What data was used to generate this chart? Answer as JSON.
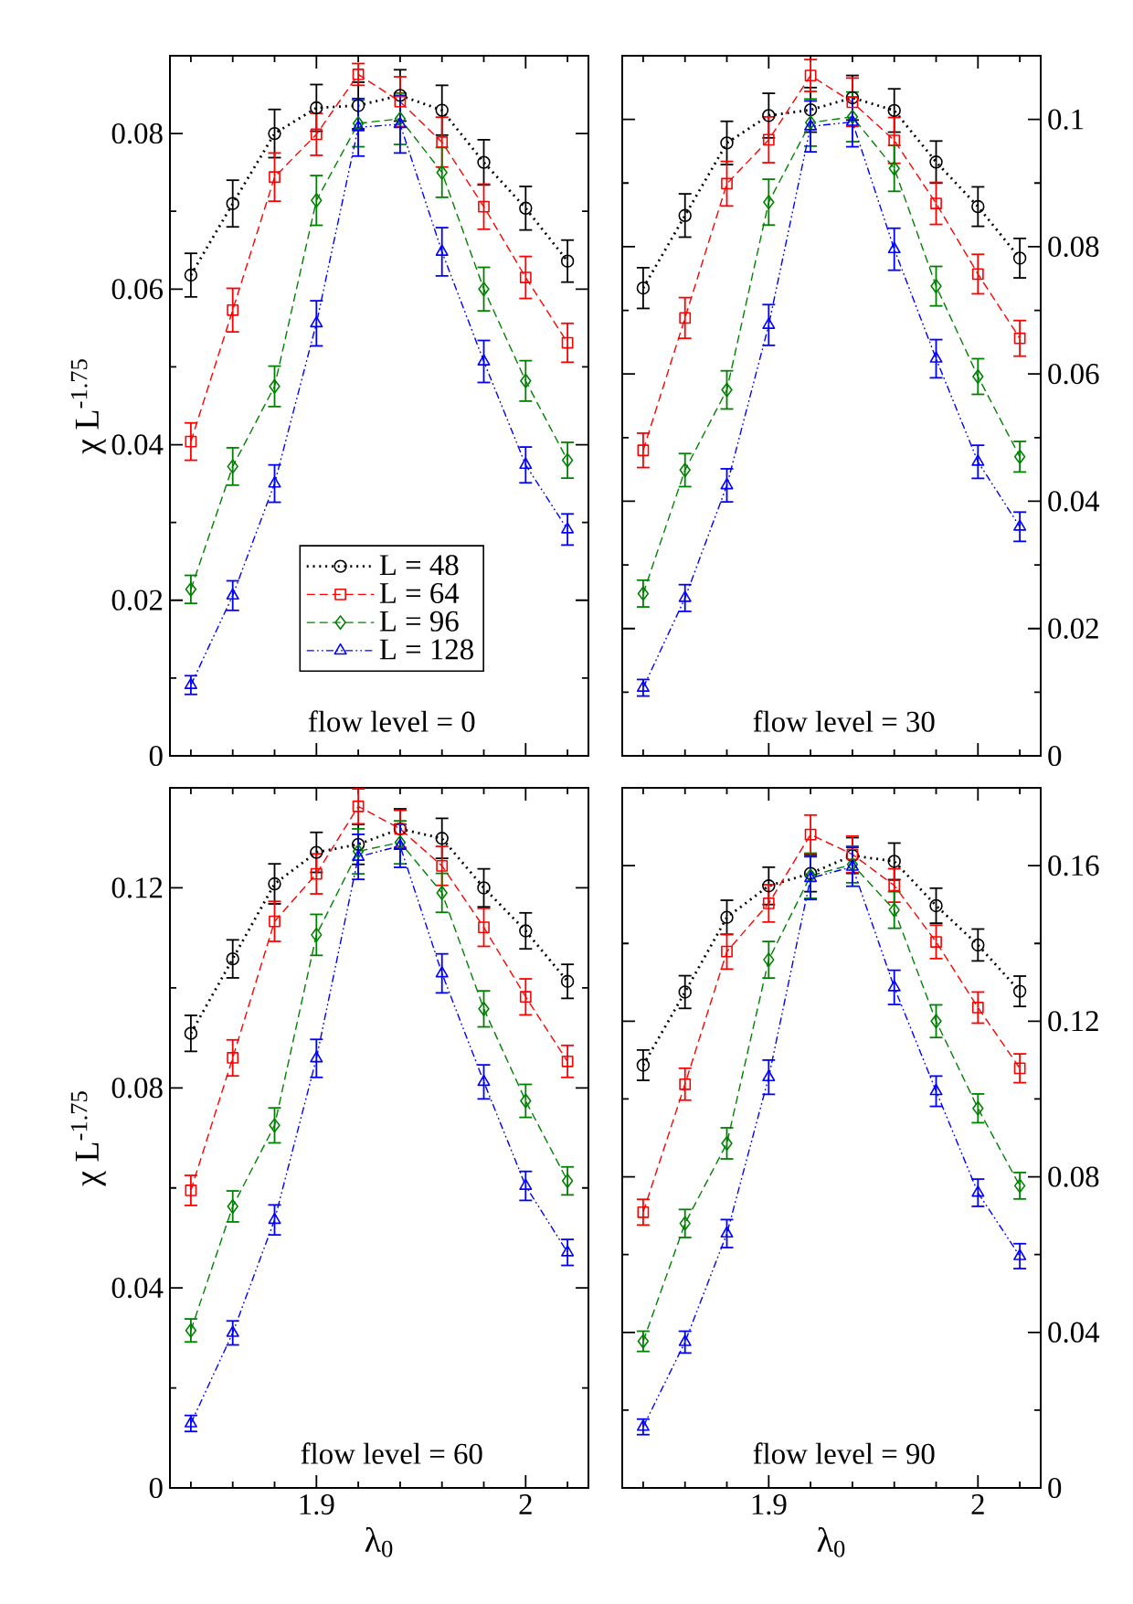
{
  "chart_data": [
    {
      "type": "line",
      "ylabel": "χ L$^{-1.75}$",
      "annotations": [
        "flow level = 0"
      ],
      "legend": "bottom",
      "tick_labels": "y",
      "x": [
        1.84,
        1.86,
        1.88,
        1.9,
        1.92,
        1.94,
        1.96,
        1.98,
        2.0,
        2.02
      ],
      "xlim": [
        1.83,
        2.03
      ],
      "ylim": [
        0,
        0.09
      ],
      "xticks": [
        {
          "value": 1.84,
          "label": null
        },
        {
          "value": 1.86,
          "label": null
        },
        {
          "value": 1.88,
          "label": null
        },
        1.9,
        {
          "value": 1.92,
          "label": null
        },
        {
          "value": 1.94,
          "label": null
        },
        {
          "value": 1.96,
          "label": null
        },
        {
          "value": 1.98,
          "label": null
        },
        2,
        {
          "value": 2.02,
          "label": null
        }
      ],
      "yticks": [
        0,
        {
          "value": 0.01,
          "label": null
        },
        0.02,
        {
          "value": 0.03,
          "label": null
        },
        0.04,
        {
          "value": 0.05,
          "label": null
        },
        0.06,
        {
          "value": 0.07,
          "label": null
        },
        0.08
      ],
      "series": [
        {
          "name": "L = 48",
          "color": "#000000",
          "marker": "circle",
          "line_style": "dotted",
          "values": [
            0.0618,
            0.071,
            0.08,
            0.0833,
            0.0836,
            0.0849,
            0.083,
            0.0763,
            0.0704,
            0.0636
          ],
          "errors": [
            0.0028,
            0.003,
            0.0031,
            0.003,
            0.003,
            0.0033,
            0.0032,
            0.0029,
            0.0028,
            0.0027
          ]
        },
        {
          "name": "L = 64",
          "color": "#ff0000",
          "marker": "square",
          "line_style": "dashed",
          "values": [
            0.0404,
            0.0573,
            0.0744,
            0.0799,
            0.0876,
            0.0841,
            0.0789,
            0.0706,
            0.0615,
            0.0531
          ],
          "errors": [
            0.0024,
            0.0028,
            0.0031,
            0.0027,
            0.0014,
            0.0032,
            0.0032,
            0.0029,
            0.0027,
            0.0025
          ]
        },
        {
          "name": "L = 96",
          "color": "#008000",
          "marker": "diamond",
          "line_style": "dashed",
          "values": [
            0.0214,
            0.0372,
            0.0475,
            0.0714,
            0.0813,
            0.0819,
            0.075,
            0.06,
            0.0482,
            0.038
          ],
          "errors": [
            0.0018,
            0.0024,
            0.0026,
            0.0032,
            0.003,
            0.0033,
            0.0032,
            0.0028,
            0.0026,
            0.0023
          ]
        },
        {
          "name": "L = 128",
          "color": "#0000ff",
          "marker": "triangle",
          "line_style": "dashdotdotted",
          "values": [
            0.0091,
            0.0206,
            0.035,
            0.0556,
            0.0808,
            0.0812,
            0.0648,
            0.0507,
            0.0374,
            0.0291
          ],
          "errors": [
            0.0012,
            0.0019,
            0.0024,
            0.0029,
            0.0037,
            0.0037,
            0.0031,
            0.0027,
            0.0023,
            0.002
          ]
        }
      ]
    },
    {
      "type": "line",
      "annotations": [
        "flow level = 30"
      ],
      "tick_labels": "y",
      "x": [
        1.84,
        1.86,
        1.88,
        1.9,
        1.92,
        1.94,
        1.96,
        1.98,
        2.0,
        2.02
      ],
      "xlim": [
        1.83,
        2.03
      ],
      "y2lim": [
        0,
        0.11
      ],
      "xticks": [
        {
          "value": 1.84,
          "label": null
        },
        {
          "value": 1.86,
          "label": null
        },
        {
          "value": 1.88,
          "label": null
        },
        1.9,
        {
          "value": 1.92,
          "label": null
        },
        {
          "value": 1.94,
          "label": null
        },
        {
          "value": 1.96,
          "label": null
        },
        {
          "value": 1.98,
          "label": null
        },
        2,
        {
          "value": 2.02,
          "label": null
        }
      ],
      "y2ticks": [
        0,
        {
          "value": 0.01,
          "label": null
        },
        0.02,
        {
          "value": 0.03,
          "label": null
        },
        0.04,
        {
          "value": 0.05,
          "label": null
        },
        0.06,
        {
          "value": 0.07,
          "label": null
        },
        0.08,
        {
          "value": 0.09,
          "label": null
        },
        0.1
      ],
      "series": [
        {
          "axis": "y2",
          "color": "#000000",
          "marker": "circle",
          "line_style": "dotted",
          "values": [
            0.0735,
            0.0849,
            0.0963,
            0.1006,
            0.1015,
            0.1034,
            0.1014,
            0.0933,
            0.0863,
            0.0782
          ],
          "errors": [
            0.0032,
            0.0034,
            0.0034,
            0.0035,
            0.0035,
            0.0035,
            0.0034,
            0.0033,
            0.0031,
            0.0031
          ]
        },
        {
          "axis": "y2",
          "color": "#ff0000",
          "marker": "square",
          "line_style": "dashed",
          "values": [
            0.048,
            0.0688,
            0.0899,
            0.0968,
            0.1069,
            0.1027,
            0.0967,
            0.0868,
            0.0757,
            0.0656
          ],
          "errors": [
            0.0027,
            0.0032,
            0.0035,
            0.0036,
            0.0025,
            0.0038,
            0.0036,
            0.0033,
            0.0031,
            0.0028
          ]
        },
        {
          "axis": "y2",
          "color": "#008000",
          "marker": "diamond",
          "line_style": "dashed",
          "values": [
            0.0255,
            0.0449,
            0.0575,
            0.087,
            0.0995,
            0.1004,
            0.0923,
            0.0738,
            0.0596,
            0.047
          ],
          "errors": [
            0.0021,
            0.0026,
            0.003,
            0.0036,
            0.0037,
            0.0039,
            0.0036,
            0.0031,
            0.0028,
            0.0024
          ]
        },
        {
          "axis": "y2",
          "color": "#0000ff",
          "marker": "triangle",
          "line_style": "dashdotdotted",
          "values": [
            0.0107,
            0.0248,
            0.0425,
            0.0677,
            0.0989,
            0.0996,
            0.0796,
            0.0624,
            0.0462,
            0.036
          ],
          "errors": [
            0.0013,
            0.0021,
            0.0026,
            0.0032,
            0.004,
            0.0039,
            0.0033,
            0.003,
            0.0026,
            0.0023
          ]
        }
      ]
    },
    {
      "type": "line",
      "xlabel": "λ$_{0}$",
      "ylabel": "χ L$^{-1.75}$",
      "annotations": [
        "flow level = 60"
      ],
      "x": [
        1.84,
        1.86,
        1.88,
        1.9,
        1.92,
        1.94,
        1.96,
        1.98,
        2.0,
        2.02
      ],
      "xlim": [
        1.83,
        2.03
      ],
      "ylim": [
        0,
        0.14
      ],
      "xticks": [
        {
          "value": 1.84,
          "label": null
        },
        {
          "value": 1.86,
          "label": null
        },
        {
          "value": 1.88,
          "label": null
        },
        1.9,
        {
          "value": 1.92,
          "label": null
        },
        {
          "value": 1.94,
          "label": null
        },
        {
          "value": 1.96,
          "label": null
        },
        {
          "value": 1.98,
          "label": null
        },
        2,
        {
          "value": 2.02,
          "label": null
        }
      ],
      "yticks": [
        0,
        {
          "value": 0.02,
          "label": null
        },
        0.04,
        {
          "value": 0.06,
          "label": null
        },
        0.08,
        {
          "value": 0.1,
          "label": null
        },
        0.12
      ],
      "series": [
        {
          "color": "#000000",
          "marker": "circle",
          "line_style": "dotted",
          "values": [
            0.0909,
            0.1058,
            0.1208,
            0.1271,
            0.1287,
            0.1318,
            0.1299,
            0.12,
            0.1114,
            0.1013
          ],
          "errors": [
            0.0036,
            0.0038,
            0.004,
            0.004,
            0.004,
            0.004,
            0.004,
            0.0038,
            0.0036,
            0.0034
          ]
        },
        {
          "color": "#ff0000",
          "marker": "square",
          "line_style": "dashed",
          "values": [
            0.0595,
            0.086,
            0.1133,
            0.1228,
            0.1363,
            0.1318,
            0.1244,
            0.1121,
            0.0982,
            0.0853
          ],
          "errors": [
            0.003,
            0.0036,
            0.004,
            0.004,
            0.0035,
            0.0037,
            0.0039,
            0.0038,
            0.0036,
            0.0032
          ]
        },
        {
          "color": "#008000",
          "marker": "diamond",
          "line_style": "dashed",
          "values": [
            0.0315,
            0.0563,
            0.0725,
            0.1106,
            0.1273,
            0.1291,
            0.119,
            0.0958,
            0.0774,
            0.0614
          ],
          "errors": [
            0.0023,
            0.0031,
            0.0035,
            0.0041,
            0.0045,
            0.0043,
            0.0039,
            0.0036,
            0.0033,
            0.0028
          ]
        },
        {
          "color": "#0000ff",
          "marker": "triangle",
          "line_style": "dashdotdotted",
          "values": [
            0.0129,
            0.031,
            0.0536,
            0.0859,
            0.1262,
            0.1284,
            0.1029,
            0.0812,
            0.0604,
            0.0471
          ],
          "errors": [
            0.0016,
            0.0024,
            0.003,
            0.0038,
            0.0045,
            0.0043,
            0.0039,
            0.0034,
            0.0029,
            0.0026
          ]
        }
      ]
    },
    {
      "type": "line",
      "xlabel": "λ$_{0}$",
      "annotations": [
        "flow level = 90"
      ],
      "x": [
        1.84,
        1.86,
        1.88,
        1.9,
        1.92,
        1.94,
        1.96,
        1.98,
        2.0,
        2.02
      ],
      "xlim": [
        1.83,
        2.03
      ],
      "y2lim": [
        0,
        0.18
      ],
      "xticks": [
        {
          "value": 1.84,
          "label": null
        },
        {
          "value": 1.86,
          "label": null
        },
        {
          "value": 1.88,
          "label": null
        },
        1.9,
        {
          "value": 1.92,
          "label": null
        },
        {
          "value": 1.94,
          "label": null
        },
        {
          "value": 1.96,
          "label": null
        },
        {
          "value": 1.98,
          "label": null
        },
        2,
        {
          "value": 2.02,
          "label": null
        }
      ],
      "y2ticks": [
        0,
        {
          "value": 0.02,
          "label": null
        },
        0.04,
        {
          "value": 0.06,
          "label": null
        },
        0.08,
        {
          "value": 0.1,
          "label": null
        },
        0.12,
        {
          "value": 0.14,
          "label": null
        },
        0.16
      ],
      "series": [
        {
          "axis": "y2",
          "color": "#000000",
          "marker": "circle",
          "line_style": "dotted",
          "values": [
            0.1087,
            0.1275,
            0.1467,
            0.1548,
            0.158,
            0.1626,
            0.1611,
            0.1497,
            0.1396,
            0.1277
          ],
          "errors": [
            0.0039,
            0.0042,
            0.0044,
            0.0048,
            0.0047,
            0.0046,
            0.0047,
            0.0045,
            0.0041,
            0.0039
          ]
        },
        {
          "axis": "y2",
          "color": "#ff0000",
          "marker": "square",
          "line_style": "dashed",
          "values": [
            0.0709,
            0.1038,
            0.1379,
            0.1503,
            0.168,
            0.1629,
            0.1549,
            0.1404,
            0.1235,
            0.1079
          ],
          "errors": [
            0.0033,
            0.0041,
            0.0045,
            0.0048,
            0.005,
            0.0047,
            0.0043,
            0.0043,
            0.004,
            0.0037
          ]
        },
        {
          "axis": "y2",
          "color": "#008000",
          "marker": "diamond",
          "line_style": "dashed",
          "values": [
            0.0377,
            0.068,
            0.0886,
            0.1358,
            0.1574,
            0.1603,
            0.1486,
            0.12,
            0.0976,
            0.0777
          ],
          "errors": [
            0.0026,
            0.0036,
            0.004,
            0.0047,
            0.0058,
            0.0047,
            0.0047,
            0.0042,
            0.0037,
            0.0034
          ]
        },
        {
          "axis": "y2",
          "color": "#0000ff",
          "marker": "triangle",
          "line_style": "dashdotdotted",
          "values": [
            0.0157,
            0.0375,
            0.0654,
            0.1056,
            0.1568,
            0.1597,
            0.1287,
            0.102,
            0.0759,
            0.0596
          ],
          "errors": [
            0.002,
            0.0028,
            0.0036,
            0.0044,
            0.0055,
            0.005,
            0.0044,
            0.0039,
            0.0035,
            0.0032
          ]
        }
      ]
    }
  ]
}
